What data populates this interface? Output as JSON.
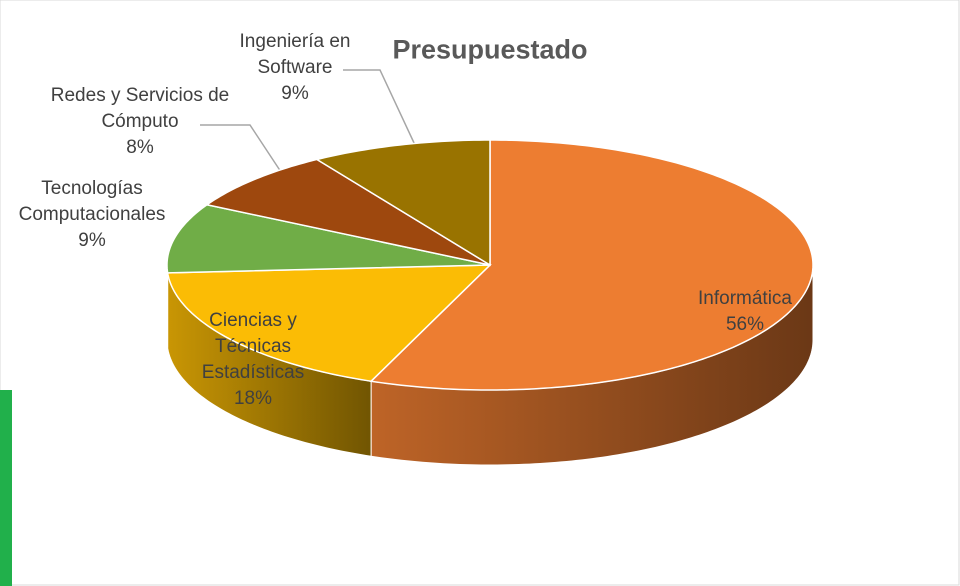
{
  "chart_data": {
    "type": "pie",
    "title": "Presupuestado",
    "categories": [
      "Informática",
      "Ciencias y Técnicas Estadísticas",
      "Tecnologías Computacionales",
      "Redes y Servicios de Cómputo",
      "Ingeniería en Software"
    ],
    "values": [
      56,
      18,
      9,
      8,
      9
    ],
    "value_labels": [
      "56%",
      "18%",
      "9%",
      "8%",
      "9%"
    ],
    "colors": [
      "#ED7D31",
      "#FBBC05",
      "#70AD47",
      "#9E480E",
      "#997300"
    ]
  }
}
